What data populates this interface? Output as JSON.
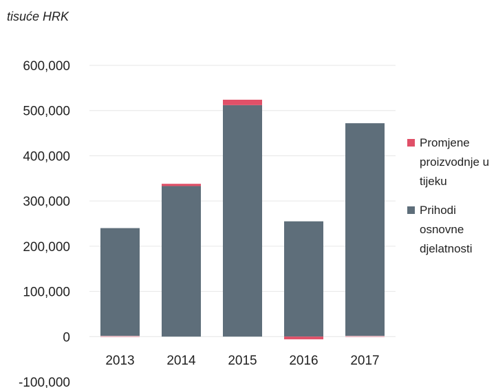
{
  "chart_data": {
    "type": "bar",
    "stacked": true,
    "unit_label": "tisuće HRK",
    "categories": [
      "2013",
      "2014",
      "2015",
      "2016",
      "2017"
    ],
    "series": [
      {
        "name": "Prihodi osnovne djelatnosti",
        "color": "#5e6e7a",
        "values": [
          240000,
          333000,
          512000,
          255000,
          472000
        ]
      },
      {
        "name": "Promjene proizvodnje u tijeku",
        "color": "#e05068",
        "values": [
          0,
          5000,
          12000,
          -6000,
          0
        ]
      }
    ],
    "y_ticks": [
      "600,000",
      "500,000",
      "400,000",
      "300,000",
      "200,000",
      "100,000",
      "0",
      "-100,000"
    ],
    "ylim": [
      -100000,
      600000
    ],
    "grid": true,
    "legend_position": "right"
  }
}
